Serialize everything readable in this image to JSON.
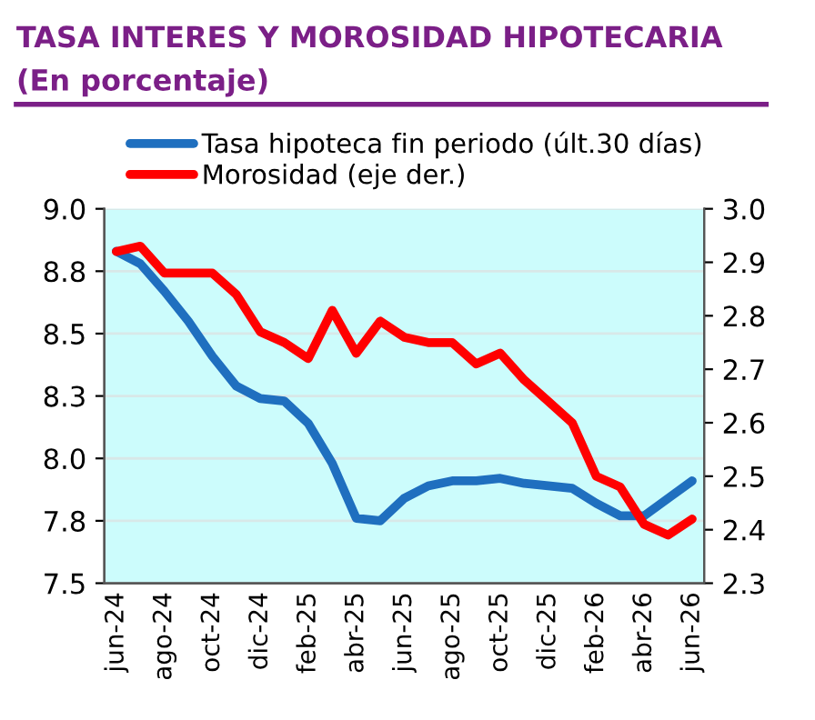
{
  "chart_data": {
    "type": "line",
    "title": "TASA INTERES Y MOROSIDAD HIPOTECARIA",
    "subtitle": "(En porcentaje)",
    "categories": [
      "jun-24",
      null,
      "ago-24",
      null,
      "oct-24",
      null,
      "dic-24",
      null,
      "feb-25",
      null,
      "abr-25",
      null,
      "jun-25",
      null,
      "ago-25",
      null,
      "oct-25",
      null,
      "dic-25",
      null,
      "feb-26",
      null,
      "abr-26",
      null,
      "jun-26"
    ],
    "series": [
      {
        "name": "Tasa hipoteca fin periodo (últ.30 días)",
        "color": "#1f6fbf",
        "values": [
          8.83,
          8.78,
          8.67,
          8.55,
          8.41,
          8.29,
          8.24,
          8.23,
          8.14,
          7.98,
          7.76,
          7.75,
          7.84,
          7.89,
          7.91,
          7.91,
          7.92,
          7.9,
          7.89,
          7.88,
          7.82,
          7.77,
          7.77,
          7.84,
          7.91
        ]
      },
      {
        "name": "Morosidad (eje der.)",
        "color": "#ff0000",
        "axis": "y2",
        "values": [
          2.92,
          2.93,
          2.88,
          2.88,
          2.88,
          2.84,
          2.77,
          2.75,
          2.72,
          2.81,
          2.73,
          2.79,
          2.76,
          2.75,
          2.75,
          2.71,
          2.73,
          2.68,
          2.64,
          2.6,
          2.5,
          2.48,
          2.41,
          2.39,
          2.42
        ]
      }
    ],
    "ylim": [
      7.5,
      9.0
    ],
    "yticks": [
      {
        "value": 7.5,
        "label": "7.5"
      },
      {
        "value": 7.75,
        "label": "7.8"
      },
      {
        "value": 8.0,
        "label": "8.0"
      },
      {
        "value": 8.25,
        "label": "8.3"
      },
      {
        "value": 8.5,
        "label": "8.5"
      },
      {
        "value": 8.75,
        "label": "8.8"
      },
      {
        "value": 9.0,
        "label": "9.0"
      }
    ],
    "y2lim": [
      2.3,
      3.0
    ],
    "y2ticks": [
      {
        "value": 2.3,
        "label": "2.3"
      },
      {
        "value": 2.4,
        "label": "2.4"
      },
      {
        "value": 2.5,
        "label": "2.5"
      },
      {
        "value": 2.6,
        "label": "2.6"
      },
      {
        "value": 2.7,
        "label": "2.7"
      },
      {
        "value": 2.8,
        "label": "2.8"
      },
      {
        "value": 2.9,
        "label": "2.9"
      },
      {
        "value": 3.0,
        "label": "3.0"
      }
    ],
    "grid": "y",
    "legend": "top",
    "marker": "none",
    "line_style": "solid"
  }
}
